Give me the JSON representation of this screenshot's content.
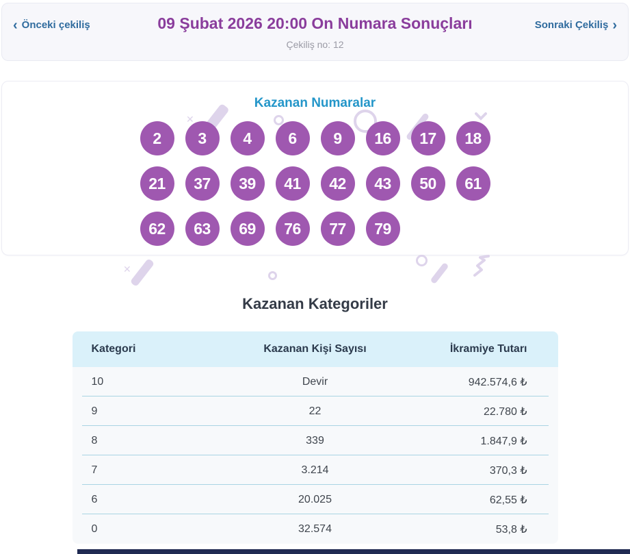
{
  "header": {
    "prev": {
      "chevron": "‹",
      "label": "Önceki çekiliş"
    },
    "next": {
      "label": "Sonraki Çekiliş",
      "chevron": "›"
    },
    "title": "09 Şubat 2026 20:00 On Numara Sonuçları",
    "draw_no": "Çekiliş no: 12"
  },
  "winning_numbers": {
    "heading": "Kazanan Numaralar",
    "rows": [
      [
        "2",
        "3",
        "4",
        "6",
        "9",
        "16",
        "17",
        "18"
      ],
      [
        "21",
        "37",
        "39",
        "41",
        "42",
        "43",
        "50",
        "61"
      ],
      [
        "62",
        "63",
        "69",
        "76",
        "77",
        "79"
      ]
    ]
  },
  "categories": {
    "heading": "Kazanan Kategoriler",
    "columns": [
      "Kategori",
      "Kazanan Kişi Sayısı",
      "İkramiye Tutarı"
    ],
    "rows": [
      [
        "10",
        "Devir",
        "942.574,6 ₺"
      ],
      [
        "9",
        "22",
        "22.780 ₺"
      ],
      [
        "8",
        "339",
        "1.847,9 ₺"
      ],
      [
        "7",
        "3.214",
        "370,3 ₺"
      ],
      [
        "6",
        "20.025",
        "62,55 ₺"
      ],
      [
        "0",
        "32.574",
        "53,8 ₺"
      ]
    ]
  },
  "colors": {
    "title-purple": "#8a3d9c",
    "link-blue": "#2f6b9e",
    "heading-teal": "#2496c9",
    "ball-purple": "#9f58b0",
    "table-header-bg": "#daf1fa",
    "table-row-bg": "#f7f9fb",
    "separator-blue": "#a9d4e3",
    "dark-heading": "#343b47",
    "muted-gray": "#9a9aa5",
    "doodle-purple": "#ded4eb",
    "bottom-bar": "#202a52"
  }
}
